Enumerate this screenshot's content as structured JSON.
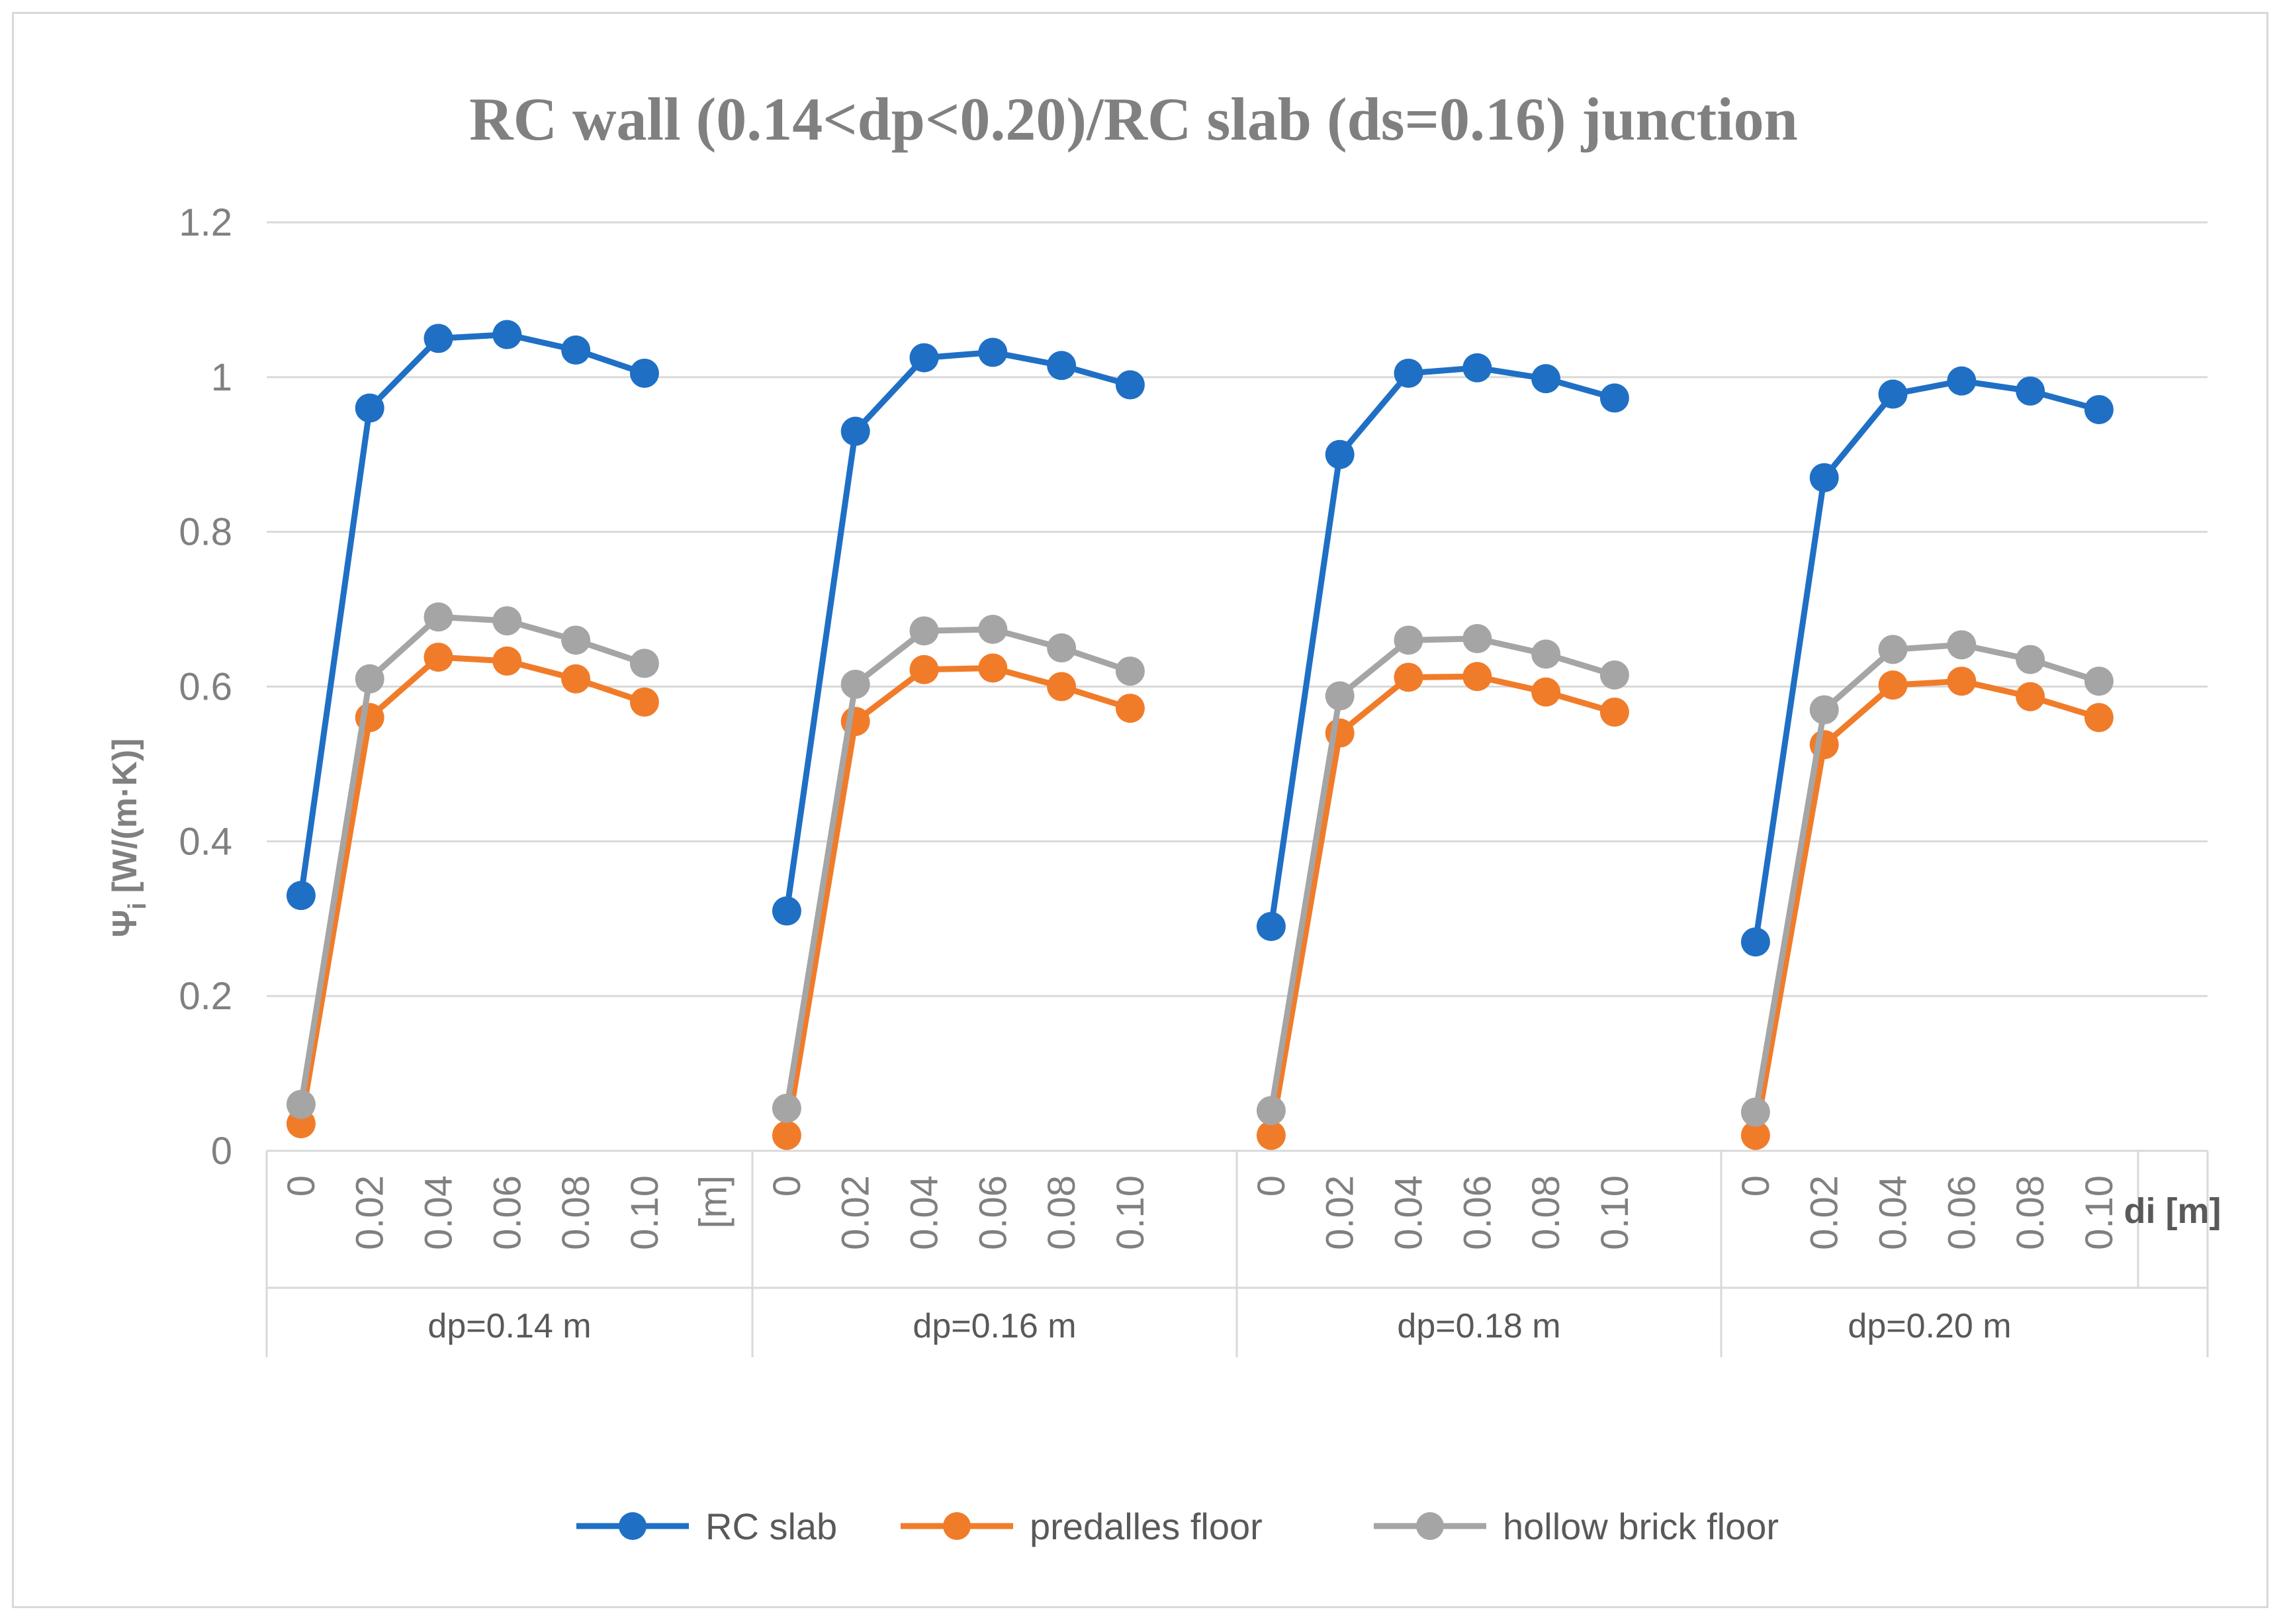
{
  "chart_data": {
    "type": "line",
    "title": "RC wall (0.14<dp<0.20)/RC slab (ds=0.16) junction",
    "ylabel_main": "Ψ",
    "ylabel_sub": "i",
    "ylabel_unit": "[W/(m·K)]",
    "xlabel": "di [m]",
    "ylim": [
      0,
      1.2
    ],
    "y_ticks": [
      0,
      0.2,
      0.4,
      0.6,
      0.8,
      1,
      1.2
    ],
    "y_tick_labels": [
      "0",
      "0.2",
      "0.4",
      "0.6",
      "0.8",
      "1",
      "1.2"
    ],
    "grid": true,
    "groups": [
      {
        "label": "dp=0.14 m",
        "categories": [
          "0",
          "0.02",
          "0.04",
          "0.06",
          "0.08",
          "0.10",
          "[m]"
        ]
      },
      {
        "label": "dp=0.16 m",
        "categories": [
          "0",
          "0.02",
          "0.04",
          "0.06",
          "0.08",
          "0.10"
        ]
      },
      {
        "label": "dp=0.18 m",
        "categories": [
          "0",
          "0.02",
          "0.04",
          "0.06",
          "0.08",
          "0.10"
        ]
      },
      {
        "label": "dp=0.20 m",
        "categories": [
          "0",
          "0.02",
          "0.04",
          "0.06",
          "0.08",
          "0.10"
        ]
      }
    ],
    "series": [
      {
        "name": "RC slab",
        "color": "#1f6fc5",
        "groups": [
          [
            0.33,
            0.96,
            1.05,
            1.055,
            1.035,
            1.005
          ],
          [
            0.31,
            0.93,
            1.025,
            1.032,
            1.015,
            0.99
          ],
          [
            0.29,
            0.9,
            1.005,
            1.012,
            0.998,
            0.973
          ],
          [
            0.27,
            0.87,
            0.978,
            0.995,
            0.982,
            0.958
          ]
        ]
      },
      {
        "name": "predalles floor",
        "color": "#f07c2a",
        "groups": [
          [
            0.035,
            0.56,
            0.638,
            0.633,
            0.61,
            0.58
          ],
          [
            0.02,
            0.555,
            0.622,
            0.624,
            0.6,
            0.572
          ],
          [
            0.02,
            0.54,
            0.612,
            0.613,
            0.593,
            0.567
          ],
          [
            0.02,
            0.525,
            0.602,
            0.607,
            0.587,
            0.56
          ]
        ]
      },
      {
        "name": "hollow brick floor",
        "color": "#a5a5a5",
        "groups": [
          [
            0.06,
            0.61,
            0.69,
            0.685,
            0.66,
            0.63
          ],
          [
            0.055,
            0.603,
            0.672,
            0.674,
            0.65,
            0.62
          ],
          [
            0.052,
            0.588,
            0.66,
            0.662,
            0.642,
            0.615
          ],
          [
            0.05,
            0.57,
            0.648,
            0.654,
            0.635,
            0.607
          ]
        ]
      }
    ],
    "legend_position": "bottom"
  }
}
